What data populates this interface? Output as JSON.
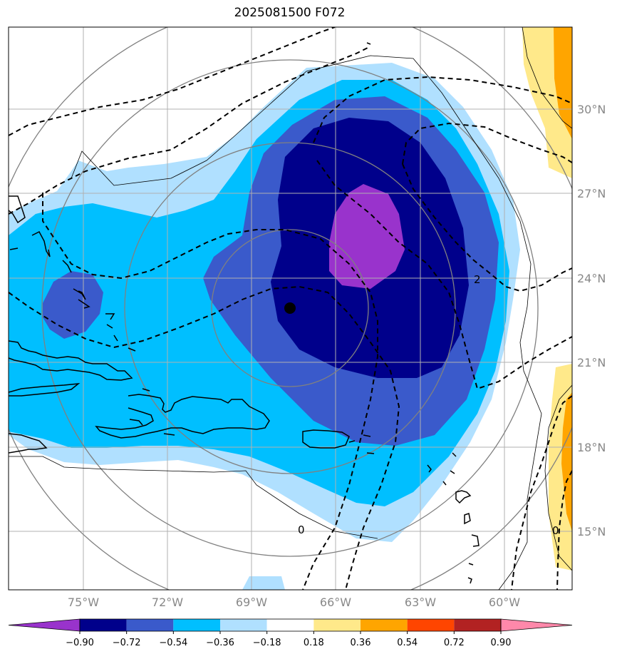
{
  "title": "2025081500 F072",
  "map": {
    "lon_labels": [
      "75°W",
      "72°W",
      "69°W",
      "66°W",
      "63°W",
      "60°W"
    ],
    "lat_labels": [
      "30°N",
      "27°N",
      "24°N",
      "21°N",
      "18°N",
      "15°N"
    ],
    "contour_labels": [
      "2",
      "0",
      "0"
    ],
    "colors": {
      "c_m090": "#9933cc",
      "c_m072": "#00008b",
      "c_m054": "#3a5acb",
      "c_m036": "#00bfff",
      "c_m018": "#b0e0ff",
      "c_p018": "#ffe98a",
      "c_p036": "#ffa500",
      "c_p054": "#ff4500",
      "c_p072": "#b22222",
      "c_p090": "#ff88aa"
    }
  },
  "colorbar": {
    "labels": [
      "−0.90",
      "−0.72",
      "−0.54",
      "−0.36",
      "−0.18",
      "0.18",
      "0.36",
      "0.54",
      "0.72",
      "0.90"
    ],
    "colors": [
      "#9933cc",
      "#00008b",
      "#3a5acb",
      "#00bfff",
      "#b0e0ff",
      "#ffffff",
      "#ffe98a",
      "#ffa500",
      "#ff4500",
      "#b22222",
      "#ff88aa"
    ]
  }
}
